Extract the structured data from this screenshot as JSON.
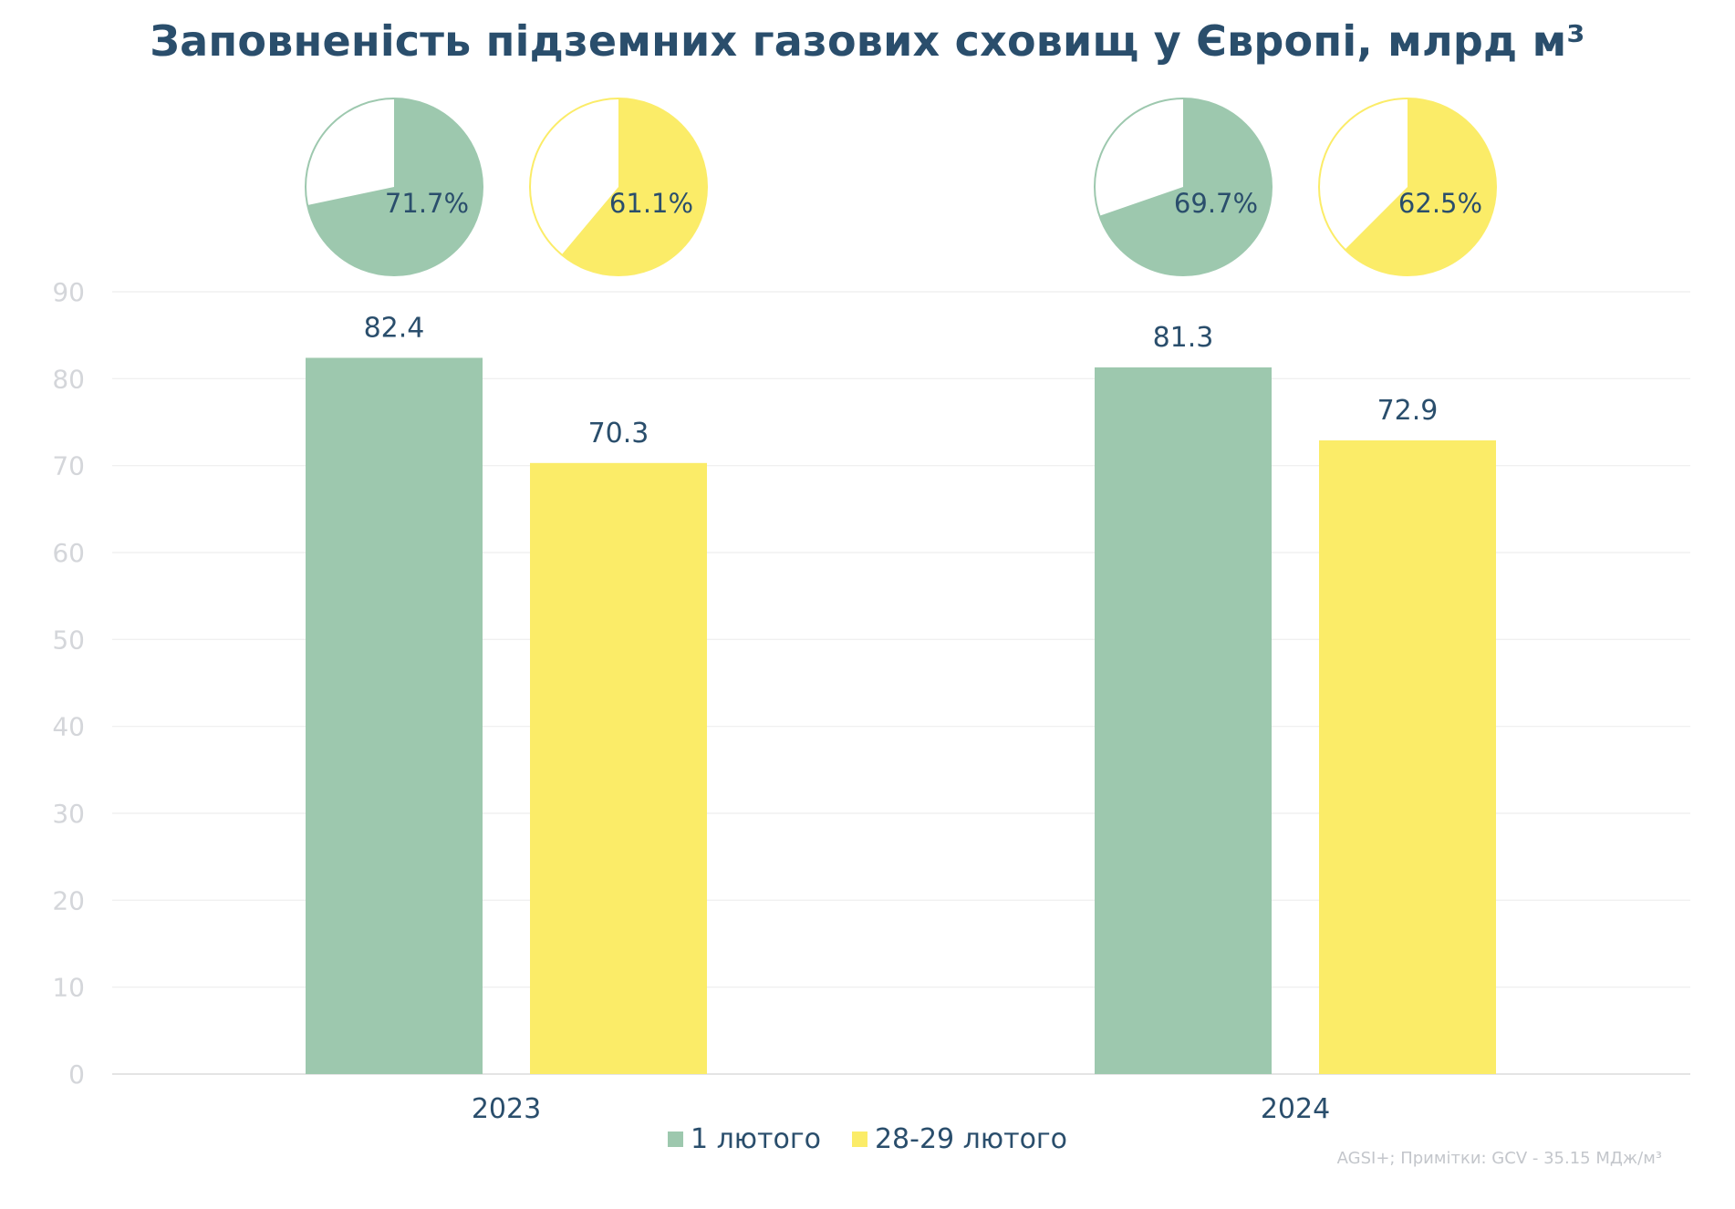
{
  "title": "Заповненість підземних газових сховищ у Європі, млрд м³",
  "source_note": "AGSI+; Примітки: GCV - 35.15 МДж/м³",
  "colors": {
    "series_1": "#9dc8ae",
    "series_2": "#fbec68",
    "text": "#2a4e6c",
    "grid": "#eeeeee",
    "tick": "#d4d6da"
  },
  "chart_data": [
    {
      "type": "bar",
      "categories": [
        "2023",
        "2024"
      ],
      "series": [
        {
          "name": "1 лютого",
          "values": [
            82.4,
            81.3
          ],
          "labels": [
            "82.4",
            "81.3"
          ]
        },
        {
          "name": "28-29 лютого",
          "values": [
            70.3,
            72.9
          ],
          "labels": [
            "70.3",
            "72.9"
          ]
        }
      ],
      "ylim": [
        0,
        90
      ],
      "yticks": [
        0,
        10,
        20,
        30,
        40,
        50,
        60,
        70,
        80,
        90
      ],
      "grid": true,
      "legend": "bottom"
    },
    {
      "type": "pie",
      "category": "2023",
      "series": "1 лютого",
      "slices": [
        {
          "value": 71.7,
          "label": "71.7%"
        },
        {
          "value": 28.3
        }
      ]
    },
    {
      "type": "pie",
      "category": "2023",
      "series": "28-29 лютого",
      "slices": [
        {
          "value": 61.1,
          "label": "61.1%"
        },
        {
          "value": 38.9
        }
      ]
    },
    {
      "type": "pie",
      "category": "2024",
      "series": "1 лютого",
      "slices": [
        {
          "value": 69.7,
          "label": "69.7%"
        },
        {
          "value": 30.3
        }
      ]
    },
    {
      "type": "pie",
      "category": "2024",
      "series": "28-29 лютого",
      "slices": [
        {
          "value": 62.5,
          "label": "62.5%"
        },
        {
          "value": 37.5
        }
      ]
    }
  ]
}
